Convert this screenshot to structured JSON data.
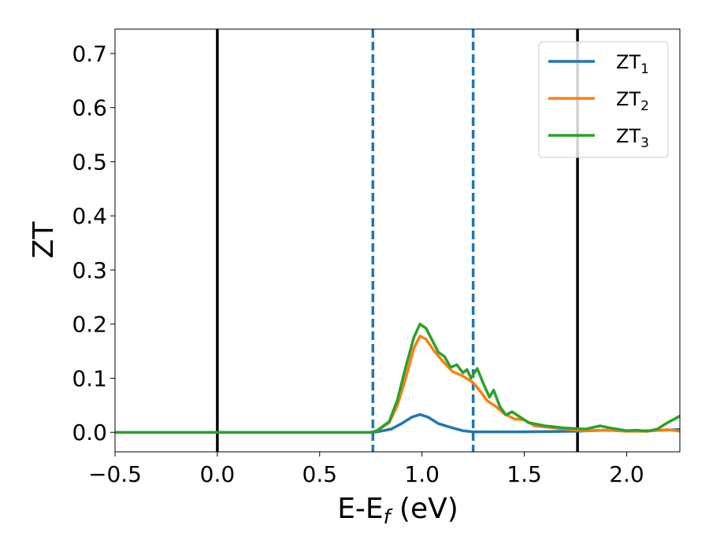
{
  "chart_data": {
    "type": "line",
    "xlabel": {
      "main": "E-E",
      "sub": "f",
      "suffix": " (eV)"
    },
    "ylabel": "ZT",
    "xlim": [
      -0.5,
      2.26
    ],
    "ylim": [
      -0.036,
      0.745
    ],
    "xticks": [
      -0.5,
      0.0,
      0.5,
      1.0,
      1.5,
      2.0
    ],
    "xtick_labels": [
      "−0.5",
      "0.0",
      "0.5",
      "1.0",
      "1.5",
      "2.0"
    ],
    "yticks": [
      0.0,
      0.1,
      0.2,
      0.3,
      0.4,
      0.5,
      0.6,
      0.7
    ],
    "ytick_labels": [
      "0.0",
      "0.1",
      "0.2",
      "0.3",
      "0.4",
      "0.5",
      "0.6",
      "0.7"
    ],
    "grid": false,
    "legend_position": "top-right",
    "vlines": [
      {
        "x": 0.0,
        "color": "#000000",
        "style": "solid"
      },
      {
        "x": 1.76,
        "color": "#000000",
        "style": "solid"
      },
      {
        "x": 0.76,
        "color": "#1f77b4",
        "style": "dashed"
      },
      {
        "x": 1.25,
        "color": "#1f77b4",
        "style": "dashed"
      }
    ],
    "series": [
      {
        "name": "ZT",
        "name_sub": "1",
        "color": "#1f77b4",
        "points": [
          [
            -0.5,
            0
          ],
          [
            0.75,
            0
          ],
          [
            0.78,
            0.001
          ],
          [
            0.85,
            0.006
          ],
          [
            0.9,
            0.016
          ],
          [
            0.95,
            0.028
          ],
          [
            0.99,
            0.033
          ],
          [
            1.03,
            0.028
          ],
          [
            1.08,
            0.016
          ],
          [
            1.15,
            0.008
          ],
          [
            1.2,
            0.003
          ],
          [
            1.25,
            0.001
          ],
          [
            1.3,
            0.001
          ],
          [
            1.5,
            0.001
          ],
          [
            1.75,
            0.002
          ],
          [
            1.9,
            0.004
          ],
          [
            2.0,
            0.003
          ],
          [
            2.1,
            0.003
          ],
          [
            2.26,
            0.005
          ]
        ]
      },
      {
        "name": "ZT",
        "name_sub": "2",
        "color": "#ff7f0e",
        "points": [
          [
            -0.5,
            0
          ],
          [
            0.75,
            0
          ],
          [
            0.78,
            0.003
          ],
          [
            0.84,
            0.018
          ],
          [
            0.88,
            0.05
          ],
          [
            0.92,
            0.1
          ],
          [
            0.96,
            0.155
          ],
          [
            0.99,
            0.178
          ],
          [
            1.02,
            0.172
          ],
          [
            1.06,
            0.15
          ],
          [
            1.1,
            0.132
          ],
          [
            1.15,
            0.112
          ],
          [
            1.2,
            0.104
          ],
          [
            1.25,
            0.092
          ],
          [
            1.28,
            0.078
          ],
          [
            1.32,
            0.058
          ],
          [
            1.36,
            0.048
          ],
          [
            1.4,
            0.035
          ],
          [
            1.45,
            0.025
          ],
          [
            1.5,
            0.023
          ],
          [
            1.55,
            0.012
          ],
          [
            1.6,
            0.01
          ],
          [
            1.7,
            0.006
          ],
          [
            1.8,
            0.003
          ],
          [
            1.9,
            0.004
          ],
          [
            2.0,
            0.002
          ],
          [
            2.1,
            0.002
          ],
          [
            2.2,
            0.005
          ],
          [
            2.26,
            0.002
          ]
        ]
      },
      {
        "name": "ZT",
        "name_sub": "3",
        "color": "#2ca02c",
        "points": [
          [
            -0.5,
            0
          ],
          [
            0.75,
            0
          ],
          [
            0.78,
            0.003
          ],
          [
            0.84,
            0.02
          ],
          [
            0.88,
            0.06
          ],
          [
            0.92,
            0.12
          ],
          [
            0.96,
            0.175
          ],
          [
            0.99,
            0.2
          ],
          [
            1.02,
            0.192
          ],
          [
            1.05,
            0.17
          ],
          [
            1.08,
            0.148
          ],
          [
            1.11,
            0.14
          ],
          [
            1.14,
            0.12
          ],
          [
            1.17,
            0.125
          ],
          [
            1.2,
            0.11
          ],
          [
            1.22,
            0.116
          ],
          [
            1.24,
            0.1
          ],
          [
            1.27,
            0.118
          ],
          [
            1.3,
            0.09
          ],
          [
            1.33,
            0.065
          ],
          [
            1.35,
            0.078
          ],
          [
            1.38,
            0.048
          ],
          [
            1.41,
            0.032
          ],
          [
            1.44,
            0.038
          ],
          [
            1.48,
            0.028
          ],
          [
            1.52,
            0.018
          ],
          [
            1.6,
            0.012
          ],
          [
            1.7,
            0.008
          ],
          [
            1.8,
            0.006
          ],
          [
            1.87,
            0.012
          ],
          [
            1.92,
            0.008
          ],
          [
            2.0,
            0.003
          ],
          [
            2.05,
            0.004
          ],
          [
            2.1,
            0.002
          ],
          [
            2.15,
            0.006
          ],
          [
            2.2,
            0.018
          ],
          [
            2.26,
            0.03
          ]
        ]
      }
    ]
  }
}
